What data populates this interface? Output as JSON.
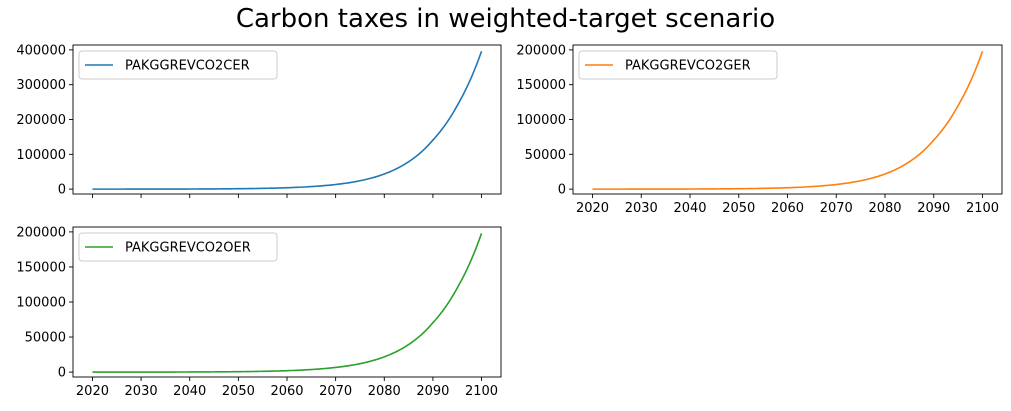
{
  "figure": {
    "title": "Carbon taxes in weighted-target scenario"
  },
  "chart_data": [
    {
      "type": "line",
      "title": "",
      "xlabel": "",
      "ylabel": "",
      "xlim": [
        2016,
        2104
      ],
      "ylim": [
        -14000,
        414000
      ],
      "xticks": [
        2020,
        2030,
        2040,
        2050,
        2060,
        2070,
        2080,
        2090,
        2100
      ],
      "show_xtick_labels": false,
      "yticks": [
        0,
        100000,
        200000,
        300000,
        400000
      ],
      "grid": false,
      "legend_position": "upper-left",
      "x": [
        2020,
        2025,
        2030,
        2035,
        2040,
        2045,
        2050,
        2055,
        2060,
        2065,
        2070,
        2075,
        2080,
        2085,
        2090,
        2095,
        2100
      ],
      "series": [
        {
          "name": "PAKGGREVCO2CER",
          "color": "#1f77b4",
          "values": [
            0,
            20,
            70,
            160,
            330,
            640,
            1200,
            2200,
            4000,
            7300,
            13300,
            24000,
            43500,
            78500,
            141000,
            240000,
            396000
          ]
        }
      ]
    },
    {
      "type": "line",
      "title": "",
      "xlabel": "",
      "ylabel": "",
      "xlim": [
        2016,
        2104
      ],
      "ylim": [
        -7000,
        207000
      ],
      "xticks": [
        2020,
        2030,
        2040,
        2050,
        2060,
        2070,
        2080,
        2090,
        2100
      ],
      "show_xtick_labels": true,
      "yticks": [
        0,
        50000,
        100000,
        150000,
        200000
      ],
      "grid": false,
      "legend_position": "upper-left",
      "x": [
        2020,
        2025,
        2030,
        2035,
        2040,
        2045,
        2050,
        2055,
        2060,
        2065,
        2070,
        2075,
        2080,
        2085,
        2090,
        2095,
        2100
      ],
      "series": [
        {
          "name": "PAKGGREVCO2GER",
          "color": "#ff7f0e",
          "values": [
            0,
            10,
            35,
            80,
            165,
            320,
            600,
            1100,
            2000,
            3650,
            6650,
            12000,
            21750,
            39250,
            70500,
            120000,
            198000
          ]
        }
      ]
    },
    {
      "type": "line",
      "title": "",
      "xlabel": "",
      "ylabel": "",
      "xlim": [
        2016,
        2104
      ],
      "ylim": [
        -7000,
        207000
      ],
      "xticks": [
        2020,
        2030,
        2040,
        2050,
        2060,
        2070,
        2080,
        2090,
        2100
      ],
      "show_xtick_labels": true,
      "yticks": [
        0,
        50000,
        100000,
        150000,
        200000
      ],
      "grid": false,
      "legend_position": "upper-left",
      "x": [
        2020,
        2025,
        2030,
        2035,
        2040,
        2045,
        2050,
        2055,
        2060,
        2065,
        2070,
        2075,
        2080,
        2085,
        2090,
        2095,
        2100
      ],
      "series": [
        {
          "name": "PAKGGREVCO2OER",
          "color": "#2ca02c",
          "values": [
            0,
            10,
            35,
            80,
            165,
            320,
            600,
            1100,
            2000,
            3650,
            6650,
            12000,
            21750,
            39250,
            70500,
            120000,
            198000
          ]
        }
      ]
    }
  ]
}
